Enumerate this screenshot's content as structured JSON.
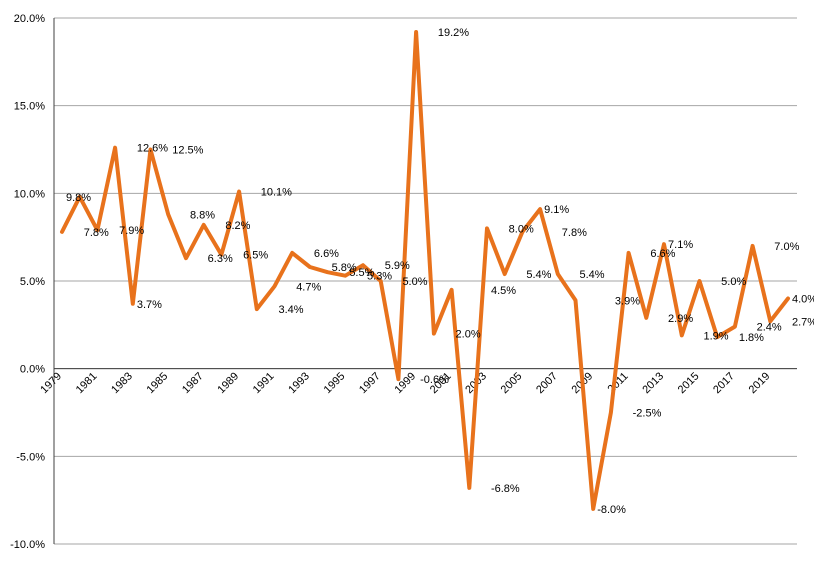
{
  "chart_data": {
    "type": "line",
    "title": "",
    "xlabel": "",
    "ylabel": "",
    "ylim": [
      -10,
      20
    ],
    "y_ticks": [
      "20.0%",
      "15.0%",
      "10.0%",
      "5.0%",
      "0.0%",
      "-5.0%",
      "-10.0%"
    ],
    "y_tick_values": [
      20,
      15,
      10,
      5,
      0,
      -5,
      -10
    ],
    "grid": "horizontal",
    "legend": "none",
    "line_color": "#E8721C",
    "x": [
      1979,
      1980,
      1981,
      1982,
      1983,
      1984,
      1985,
      1986,
      1987,
      1988,
      1989,
      1990,
      1991,
      1992,
      1993,
      1994,
      1995,
      1996,
      1997,
      1998,
      1999,
      2000,
      2001,
      2002,
      2003,
      2004,
      2005,
      2006,
      2007,
      2008,
      2009,
      2010,
      2011,
      2012,
      2013,
      2014,
      2015,
      2016,
      2017,
      2018,
      2019,
      2020
    ],
    "x_tick_labels": [
      "1979",
      "1981",
      "1983",
      "1985",
      "1987",
      "1989",
      "1991",
      "1993",
      "1995",
      "1997",
      "1999",
      "2001",
      "2003",
      "2005",
      "2007",
      "2009",
      "2011",
      "2013",
      "2015",
      "2017",
      "2019"
    ],
    "series": [
      {
        "values": [
          7.8,
          9.8,
          7.9,
          12.6,
          3.7,
          12.5,
          8.8,
          6.3,
          8.2,
          6.5,
          10.1,
          3.4,
          4.7,
          6.6,
          5.8,
          5.5,
          5.3,
          5.9,
          5.0,
          -0.6,
          19.2,
          2.0,
          4.5,
          -6.8,
          8.0,
          5.4,
          7.8,
          9.1,
          5.4,
          3.9,
          -8.0,
          -2.5,
          6.6,
          2.9,
          7.1,
          1.9,
          5.0,
          1.8,
          2.4,
          7.0,
          2.7,
          4.0
        ]
      }
    ],
    "data_labels": [
      {
        "text": "9.8%",
        "year": 1979,
        "value": 9.8
      },
      {
        "text": "7.8%",
        "year": 1980,
        "value": 7.8
      },
      {
        "text": "7.9%",
        "year": 1982,
        "value": 7.9
      },
      {
        "text": "3.7%",
        "year": 1983,
        "value": 3.7
      },
      {
        "text": "12.6%",
        "year": 1983,
        "value": 12.6
      },
      {
        "text": "12.5%",
        "year": 1985,
        "value": 12.5
      },
      {
        "text": "8.8%",
        "year": 1986,
        "value": 8.8
      },
      {
        "text": "6.3%",
        "year": 1987,
        "value": 6.3
      },
      {
        "text": "8.2%",
        "year": 1988,
        "value": 8.2
      },
      {
        "text": "6.5%",
        "year": 1989,
        "value": 6.5
      },
      {
        "text": "10.1%",
        "year": 1990,
        "value": 10.1
      },
      {
        "text": "3.4%",
        "year": 1991,
        "value": 3.4
      },
      {
        "text": "4.7%",
        "year": 1992,
        "value": 4.7
      },
      {
        "text": "6.6%",
        "year": 1993,
        "value": 6.6
      },
      {
        "text": "5.8%",
        "year": 1994,
        "value": 5.8
      },
      {
        "text": "5.5%",
        "year": 1995,
        "value": 5.5
      },
      {
        "text": "5.3%",
        "year": 1996,
        "value": 5.3
      },
      {
        "text": "5.9%",
        "year": 1997,
        "value": 5.9
      },
      {
        "text": "5.0%",
        "year": 1998,
        "value": 5.0
      },
      {
        "text": "-0.6%",
        "year": 1999,
        "value": -0.6
      },
      {
        "text": "19.2%",
        "year": 2000,
        "value": 19.2
      },
      {
        "text": "2.0%",
        "year": 2001,
        "value": 2.0
      },
      {
        "text": "4.5%",
        "year": 2003,
        "value": 4.5
      },
      {
        "text": "-6.8%",
        "year": 2003,
        "value": -6.8
      },
      {
        "text": "8.0%",
        "year": 2004,
        "value": 8.0
      },
      {
        "text": "5.4%",
        "year": 2005,
        "value": 5.4
      },
      {
        "text": "9.1%",
        "year": 2006,
        "value": 9.1
      },
      {
        "text": "7.8%",
        "year": 2007,
        "value": 7.8
      },
      {
        "text": "5.4%",
        "year": 2008,
        "value": 5.4
      },
      {
        "text": "3.9%",
        "year": 2010,
        "value": 3.9
      },
      {
        "text": "-8.0%",
        "year": 2009,
        "value": -8.0
      },
      {
        "text": "-2.5%",
        "year": 2011,
        "value": -2.5
      },
      {
        "text": "6.6%",
        "year": 2012,
        "value": 6.6
      },
      {
        "text": "2.9%",
        "year": 2013,
        "value": 2.9
      },
      {
        "text": "7.1%",
        "year": 2013,
        "value": 7.1
      },
      {
        "text": "1.9%",
        "year": 2015,
        "value": 1.9
      },
      {
        "text": "5.0%",
        "year": 2016,
        "value": 5.0
      },
      {
        "text": "1.8%",
        "year": 2017,
        "value": 1.8
      },
      {
        "text": "2.4%",
        "year": 2018,
        "value": 2.4
      },
      {
        "text": "7.0%",
        "year": 2019,
        "value": 7.0
      },
      {
        "text": "2.7%",
        "year": 2020,
        "value": 2.7
      },
      {
        "text": "4.0%",
        "year": 2020,
        "value": 4.0
      }
    ]
  }
}
